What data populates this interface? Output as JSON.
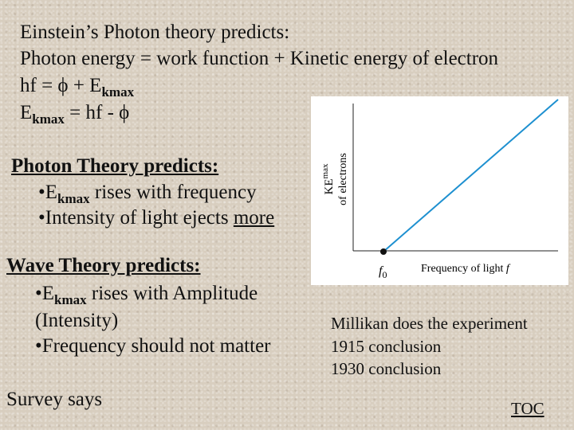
{
  "einstein": {
    "heading": "Einstein’s Photon theory predicts:",
    "equation": "Photon energy = work function + Kinetic energy of electron",
    "formula1": {
      "lead": "hf  = ϕ + E",
      "sub": "kmax"
    },
    "formula2": {
      "lead": "E",
      "sub": "kmax",
      "rest": " = hf - ϕ"
    }
  },
  "photon_theory": {
    "title": "Photon Theory predicts:",
    "bullets": [
      {
        "lead": "•E",
        "sub": "kmax",
        "rest": " rises with frequency"
      },
      {
        "lead": "•Intensity of light ejects ",
        "underlined": "more"
      }
    ]
  },
  "wave_theory": {
    "title": "Wave Theory predicts:",
    "bullets": [
      {
        "lead": "•E",
        "sub": "kmax",
        "rest": " rises with Amplitude",
        "continuation": "(Intensity)"
      },
      {
        "lead": "•Frequency should not matter"
      }
    ]
  },
  "survey": "Survey says",
  "figure": {
    "y_label": {
      "lead": "KE",
      "sub": "max",
      "rest": "of electrons"
    },
    "x_label": {
      "text": "Frequency of light ",
      "var": "f"
    },
    "origin_label": {
      "lead": "f",
      "sub": "0"
    }
  },
  "millikan": [
    "Millikan does the experiment",
    "1915 conclusion",
    "1930 conclusion"
  ],
  "toc": "TOC"
}
